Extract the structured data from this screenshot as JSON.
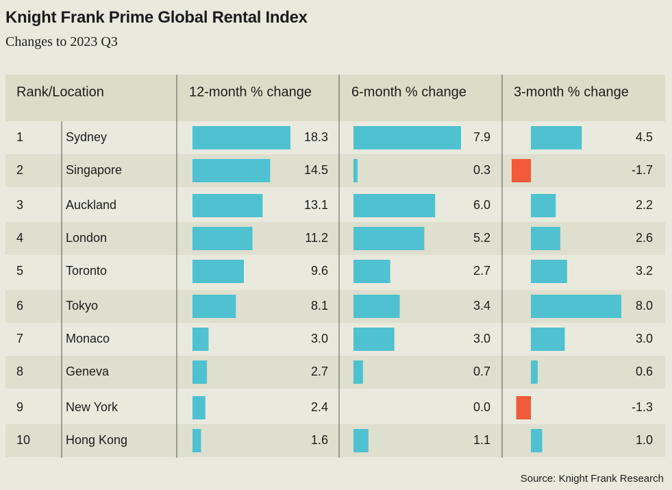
{
  "title": "Knight Frank Prime Global Rental Index",
  "subtitle": "Changes to 2023 Q3",
  "source": "Source: Knight Frank Research",
  "colors": {
    "positive": "#4fc1d0",
    "negative": "#f15a3a",
    "header_bg": "#dcdcc8",
    "band_bg": "#dedfce",
    "page_bg": "#e9eadd",
    "divider": "#555555"
  },
  "chart_data": {
    "type": "table",
    "title": "Knight Frank Prime Global Rental Index",
    "subtitle": "Changes to 2023 Q3",
    "columns": [
      "Rank/Location",
      "12-month % change",
      "6-month % change",
      "3-month % change"
    ],
    "rows": [
      {
        "rank": "1",
        "location": "Sydney",
        "m12": 18.3,
        "m6": 7.9,
        "m3": 4.5
      },
      {
        "rank": "2",
        "location": "Singapore",
        "m12": 14.5,
        "m6": 0.3,
        "m3": -1.7
      },
      {
        "rank": "3",
        "location": "Auckland",
        "m12": 13.1,
        "m6": 6.0,
        "m3": 2.2
      },
      {
        "rank": "4",
        "location": "London",
        "m12": 11.2,
        "m6": 5.2,
        "m3": 2.6
      },
      {
        "rank": "5",
        "location": "Toronto",
        "m12": 9.6,
        "m6": 2.7,
        "m3": 3.2
      },
      {
        "rank": "6",
        "location": "Tokyo",
        "m12": 8.1,
        "m6": 3.4,
        "m3": 8.0
      },
      {
        "rank": "7",
        "location": "Monaco",
        "m12": 3.0,
        "m6": 3.0,
        "m3": 3.0
      },
      {
        "rank": "8",
        "location": "Geneva",
        "m12": 2.7,
        "m6": 0.7,
        "m3": 0.6
      },
      {
        "rank": "9",
        "location": "New York",
        "m12": 2.4,
        "m6": 0.0,
        "m3": -1.3
      },
      {
        "rank": "10",
        "location": "Hong Kong",
        "m12": 1.6,
        "m6": 1.1,
        "m3": 1.0
      }
    ]
  }
}
